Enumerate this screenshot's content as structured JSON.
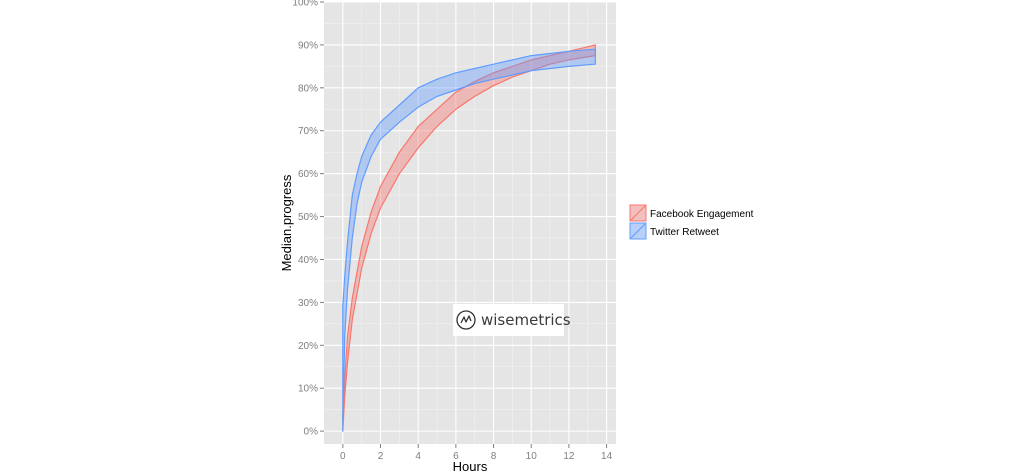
{
  "chart_data": {
    "type": "area",
    "xlabel": "Hours",
    "ylabel": "Median.progress",
    "xlim": [
      -1,
      14.5
    ],
    "ylim": [
      -0.03,
      1.0
    ],
    "x_ticks": [
      0,
      2,
      4,
      6,
      8,
      10,
      12,
      14
    ],
    "y_ticks": [
      0,
      0.1,
      0.2,
      0.3,
      0.4,
      0.5,
      0.6,
      0.7,
      0.8,
      0.9,
      1.0
    ],
    "x_tick_labels": [
      "0",
      "2",
      "4",
      "6",
      "8",
      "10",
      "12",
      "14"
    ],
    "y_tick_labels": [
      "0%",
      "10%",
      "20%",
      "30%",
      "40%",
      "50%",
      "60%",
      "70%",
      "80%",
      "90%",
      "100%"
    ],
    "grid": true,
    "legend_position": "right",
    "series": [
      {
        "name": "Facebook Engagement",
        "color": "#f8766d",
        "x": [
          0,
          0.1,
          0.25,
          0.5,
          1,
          1.5,
          2,
          3,
          4,
          5,
          6,
          7,
          8,
          9,
          10,
          11,
          12,
          13.4
        ],
        "upper": [
          0.04,
          0.12,
          0.22,
          0.31,
          0.43,
          0.51,
          0.57,
          0.65,
          0.71,
          0.75,
          0.79,
          0.815,
          0.835,
          0.85,
          0.865,
          0.875,
          0.885,
          0.9
        ],
        "lower": [
          0.0,
          0.08,
          0.16,
          0.26,
          0.38,
          0.46,
          0.52,
          0.6,
          0.66,
          0.71,
          0.75,
          0.78,
          0.805,
          0.825,
          0.84,
          0.855,
          0.865,
          0.875
        ]
      },
      {
        "name": "Twitter Retweet",
        "color": "#619cff",
        "x": [
          0,
          0.1,
          0.25,
          0.5,
          0.75,
          1,
          1.5,
          2,
          3,
          4,
          5,
          6,
          7,
          8,
          9,
          10,
          11,
          12,
          13.4
        ],
        "upper": [
          0.29,
          0.36,
          0.44,
          0.55,
          0.6,
          0.64,
          0.69,
          0.72,
          0.76,
          0.8,
          0.82,
          0.835,
          0.845,
          0.855,
          0.865,
          0.875,
          0.88,
          0.885,
          0.89
        ],
        "lower": [
          0.0,
          0.22,
          0.33,
          0.45,
          0.53,
          0.58,
          0.64,
          0.68,
          0.72,
          0.755,
          0.78,
          0.795,
          0.81,
          0.82,
          0.83,
          0.84,
          0.845,
          0.85,
          0.855
        ]
      }
    ]
  },
  "watermark": {
    "text": "wisemetrics"
  }
}
